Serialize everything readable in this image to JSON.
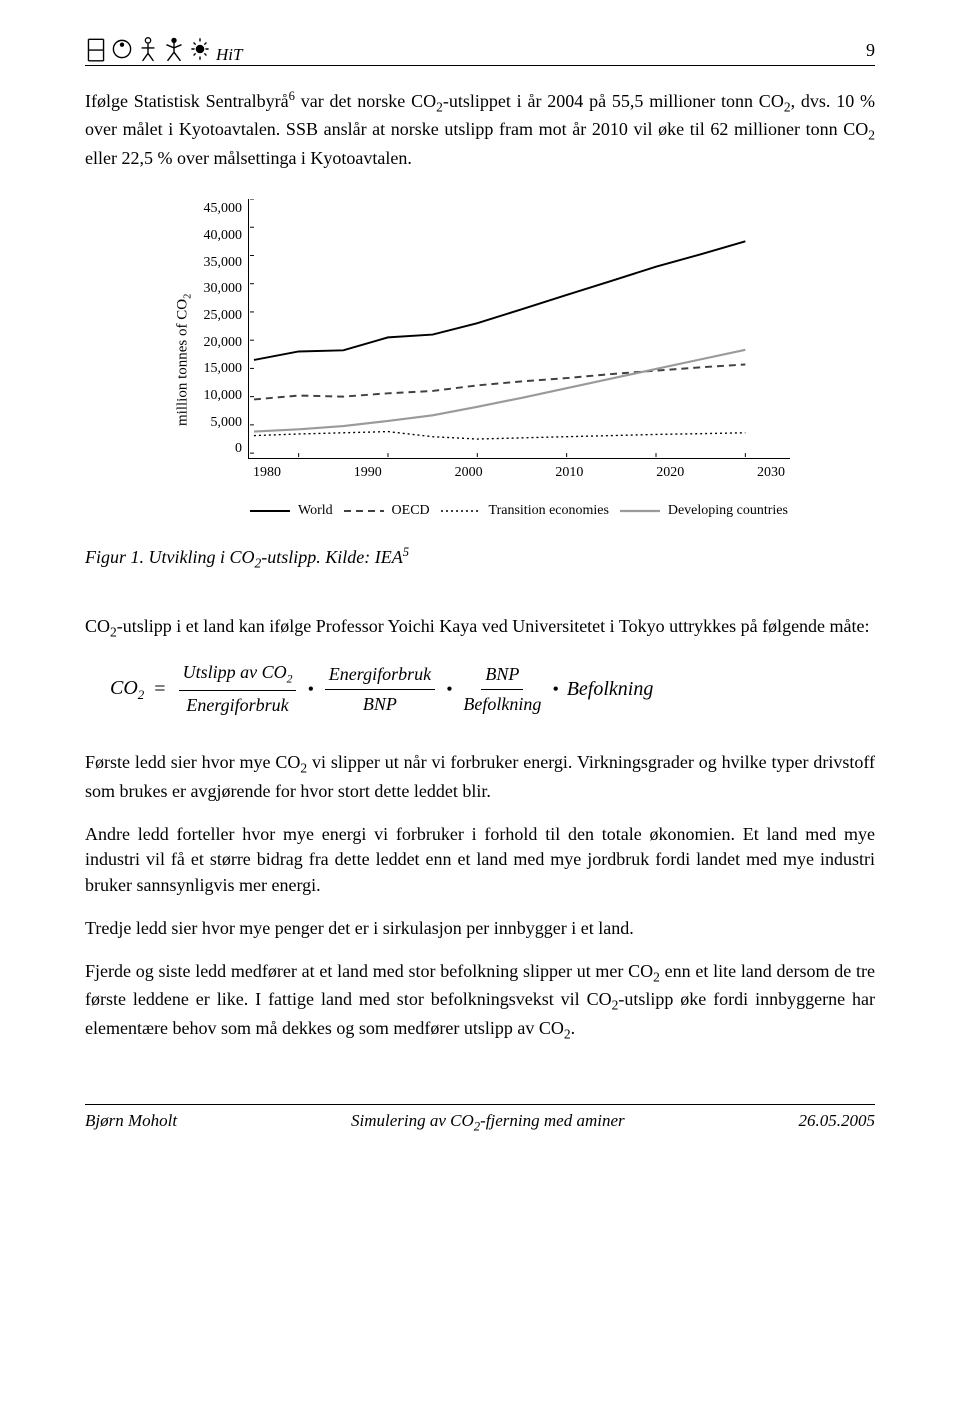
{
  "header": {
    "label": "HiT",
    "page_number": "9"
  },
  "para1": "Ifølge Statistisk Sentralbyrå{sup6} var det norske CO{sub2}-utslippet i år 2004 på 55,5 millioner tonn CO{sub2}, dvs. 10 % over målet i Kyotoavtalen. SSB anslår at norske utslipp fram mot år 2010 vil øke til 62 millioner tonn CO{sub2} eller 22,5 % over målsettinga i Kyotoavtalen.",
  "chart": {
    "type": "line",
    "ylabel_pre": "million tonnes of CO",
    "ylabel_sub": "2",
    "yticks": [
      "45,000",
      "40,000",
      "35,000",
      "30,000",
      "25,000",
      "20,000",
      "15,000",
      "10,000",
      "5,000",
      "0"
    ],
    "ylim": [
      0,
      45000
    ],
    "xticks": [
      "1980",
      "1990",
      "2000",
      "2010",
      "2020",
      "2030"
    ],
    "xlim": [
      1975,
      2035
    ],
    "series": [
      {
        "name": "World",
        "stroke": "#000000",
        "width": 2,
        "dash": "none",
        "points": [
          [
            1975,
            16500
          ],
          [
            1980,
            18000
          ],
          [
            1985,
            18200
          ],
          [
            1990,
            20500
          ],
          [
            1995,
            21000
          ],
          [
            2000,
            23000
          ],
          [
            2005,
            25500
          ],
          [
            2010,
            28000
          ],
          [
            2015,
            30500
          ],
          [
            2020,
            33000
          ],
          [
            2025,
            35200
          ],
          [
            2030,
            37500
          ]
        ]
      },
      {
        "name": "OECD",
        "stroke": "#404040",
        "width": 2,
        "dash": "7,5",
        "points": [
          [
            1975,
            9500
          ],
          [
            1980,
            10200
          ],
          [
            1985,
            10000
          ],
          [
            1990,
            10600
          ],
          [
            1995,
            11000
          ],
          [
            2000,
            12000
          ],
          [
            2005,
            12700
          ],
          [
            2010,
            13300
          ],
          [
            2015,
            14000
          ],
          [
            2020,
            14600
          ],
          [
            2025,
            15200
          ],
          [
            2030,
            15700
          ]
        ]
      },
      {
        "name": "Transition economies",
        "stroke": "#000000",
        "width": 1.4,
        "dash": "2,3",
        "points": [
          [
            1975,
            3100
          ],
          [
            1980,
            3400
          ],
          [
            1985,
            3600
          ],
          [
            1990,
            3800
          ],
          [
            1995,
            2900
          ],
          [
            2000,
            2500
          ],
          [
            2005,
            2700
          ],
          [
            2010,
            2900
          ],
          [
            2015,
            3100
          ],
          [
            2020,
            3300
          ],
          [
            2025,
            3450
          ],
          [
            2030,
            3600
          ]
        ]
      },
      {
        "name": "Developing countries",
        "stroke": "#9a9a9a",
        "width": 2.2,
        "dash": "none",
        "points": [
          [
            1975,
            3800
          ],
          [
            1980,
            4200
          ],
          [
            1985,
            4800
          ],
          [
            1990,
            5700
          ],
          [
            1995,
            6700
          ],
          [
            2000,
            8200
          ],
          [
            2005,
            9800
          ],
          [
            2010,
            11500
          ],
          [
            2015,
            13200
          ],
          [
            2020,
            14900
          ],
          [
            2025,
            16600
          ],
          [
            2030,
            18300
          ]
        ]
      }
    ],
    "legend": {
      "items": [
        {
          "label": "World",
          "stroke": "#000000",
          "dash": "none",
          "width": 2
        },
        {
          "label": "OECD",
          "stroke": "#404040",
          "dash": "7,5",
          "width": 2
        },
        {
          "label": "Transition economies",
          "stroke": "#000000",
          "dash": "2,3",
          "width": 1.4
        },
        {
          "label": "Developing countries",
          "stroke": "#9a9a9a",
          "dash": "none",
          "width": 2.2
        }
      ]
    }
  },
  "figure_caption": {
    "prefix": "Figur 1. Utvikling i CO",
    "sub": "2",
    "suffix": "-utslipp. Kilde: IEA",
    "sup": "5"
  },
  "intro2_pre": "CO",
  "intro2_post": "-utslipp i et land kan ifølge Professor Yoichi Kaya ved Universitetet i Tokyo uttrykkes på følgende måte:",
  "equation": {
    "lhs_pre": "CO",
    "lhs_sub": "2",
    "eq": "=",
    "f1_num_pre": "Utslipp av CO",
    "f1_num_sub": "2",
    "f1_den": "Energiforbruk",
    "f2_num": "Energiforbruk",
    "f2_den": "BNP",
    "f3_num": "BNP",
    "f3_den": "Befolkning",
    "tail": "Befolkning"
  },
  "para3": "Første ledd sier hvor mye CO{sub2} vi slipper ut når vi forbruker energi. Virkningsgrader og hvilke typer drivstoff som brukes er avgjørende for hvor stort dette leddet blir.",
  "para4": "Andre ledd forteller hvor mye energi vi forbruker i forhold til den totale økonomien. Et land med mye industri vil få et større bidrag fra dette leddet enn et land med mye jordbruk fordi landet med mye industri bruker sannsynligvis mer energi.",
  "para5": "Tredje ledd sier hvor mye penger det er i sirkulasjon per innbygger i et land.",
  "para6": "Fjerde og siste ledd medfører at et land med stor befolkning slipper ut mer CO{sub2} enn et lite land dersom de tre første leddene er like. I fattige land med stor befolkningsvekst vil CO{sub2}-utslipp øke fordi innbyggerne har elementære behov som må dekkes og som medfører utslipp av CO{sub2}.",
  "footer": {
    "left": "Bjørn Moholt",
    "center_pre": "Simulering av CO",
    "center_sub": "2",
    "center_post": "-fjerning med aminer",
    "right": "26.05.2005"
  }
}
